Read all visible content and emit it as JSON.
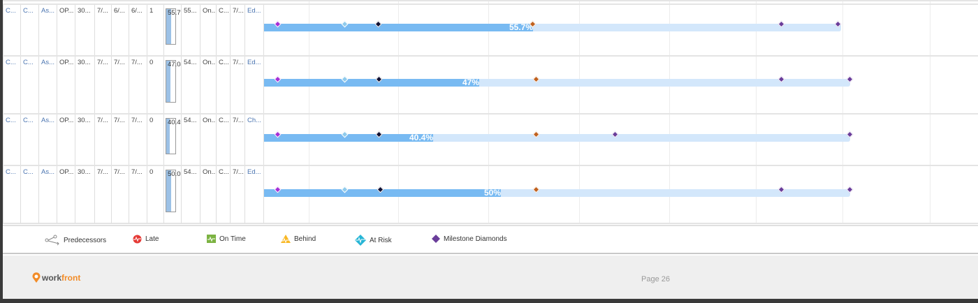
{
  "table": {
    "rows": [
      {
        "cells": [
          "C...",
          "C...",
          "As...",
          "OP...",
          "30...",
          "7/...",
          "6/...",
          "6/...",
          "1"
        ],
        "progress": "55.7%",
        "cells2": [
          "55...",
          "On...",
          "C...",
          "7/...",
          "Ed..."
        ]
      },
      {
        "cells": [
          "C...",
          "C...",
          "As...",
          "OP...",
          "30...",
          "7/...",
          "7/...",
          "7/...",
          "0"
        ],
        "progress": "47.04%",
        "cells2": [
          "54...",
          "On...",
          "C...",
          "7/...",
          "Ed..."
        ]
      },
      {
        "cells": [
          "C...",
          "C...",
          "As...",
          "OP...",
          "30...",
          "7/...",
          "7/...",
          "7/...",
          "0"
        ],
        "progress": "40.4%",
        "cells2": [
          "54...",
          "On...",
          "C...",
          "7/...",
          "Ch..."
        ]
      },
      {
        "cells": [
          "C...",
          "C...",
          "As...",
          "OP...",
          "30...",
          "7/...",
          "7/...",
          "7/...",
          "0"
        ],
        "progress": "50.03%",
        "cells2": [
          "54...",
          "On...",
          "C...",
          "7/...",
          "Ed..."
        ]
      }
    ]
  },
  "gantt": {
    "bars": [
      {
        "label": "55.7%",
        "percent": 55.7
      },
      {
        "label": "47%",
        "percent": 47
      },
      {
        "label": "40.4%",
        "percent": 40.4
      },
      {
        "label": "50%",
        "percent": 50
      }
    ],
    "colors": {
      "bar": "#d3e7fb",
      "fill": "#78baf2",
      "milestone": "#6a3d9a"
    }
  },
  "legend": {
    "items": [
      {
        "label": "Predecessors",
        "icon": "predecessors-icon"
      },
      {
        "label": "Late",
        "icon": "late-icon",
        "color": "#e53935"
      },
      {
        "label": "On Time",
        "icon": "on-time-icon",
        "color": "#7cb342"
      },
      {
        "label": "Behind",
        "icon": "behind-icon",
        "color": "#f9b825"
      },
      {
        "label": "At Risk",
        "icon": "at-risk-icon",
        "color": "#26b5d6"
      },
      {
        "label": "Milestone Diamonds",
        "icon": "milestone-diamond-icon",
        "color": "#6a3d9a"
      }
    ]
  },
  "footer": {
    "logo": "workfront",
    "page": "Page 26"
  }
}
